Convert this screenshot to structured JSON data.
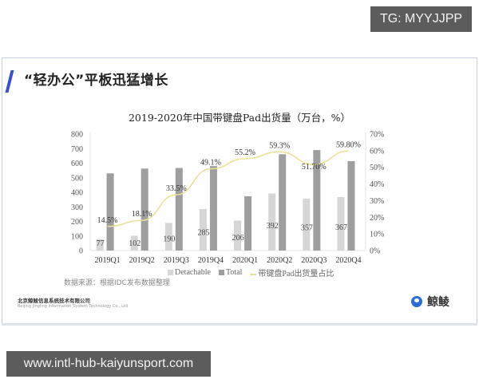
{
  "overlay": {
    "tg_badge": "TG: MYYJJPP",
    "url_badge": "www.intl-hub-kaiyunsport.com"
  },
  "slide": {
    "title": "“轻办公”平板迅猛增长",
    "source_note": "数据来源：根据IDC发布数据整理",
    "company_cn": "北京鲸鲮信息系统技术有限公司",
    "company_en": "Beijing Jingling Information System Technology Co., Ltd",
    "brand_name": "鲸鲮",
    "accent_color": "#3a4fd0"
  },
  "chart_data": {
    "type": "bar",
    "title": "2019-2020年中国带键盘Pad出货量（万台，%）",
    "categories": [
      "2019Q1",
      "2019Q2",
      "2019Q3",
      "2019Q4",
      "2020Q1",
      "2020Q2",
      "2020Q3",
      "2020Q4"
    ],
    "series": [
      {
        "name": "Detachable",
        "type": "bar",
        "axis": "left",
        "color": "#d6d6d6",
        "values": [
          77,
          102,
          190,
          285,
          206,
          392,
          357,
          367
        ],
        "labels": [
          "77",
          "102",
          "190",
          "285",
          "206",
          "392",
          "357",
          "367"
        ]
      },
      {
        "name": "Total",
        "type": "bar",
        "axis": "left",
        "color": "#9e9e9e",
        "values": [
          530,
          563,
          567,
          580,
          373,
          661,
          690,
          614
        ]
      },
      {
        "name": "带键盘Pad出货量占比",
        "type": "line",
        "axis": "right",
        "color": "#e8e39a",
        "values": [
          14.5,
          18.1,
          33.5,
          49.1,
          55.2,
          59.3,
          51.7,
          59.8
        ],
        "labels": [
          "14.5%",
          "18.1%",
          "33.5%",
          "49.1%",
          "55.2%",
          "59.3%",
          "51.70%",
          "59.80%"
        ]
      }
    ],
    "y_left": {
      "ticks": [
        "0",
        "100",
        "200",
        "300",
        "400",
        "500",
        "600",
        "700",
        "800"
      ],
      "range": [
        0,
        800
      ]
    },
    "y_right": {
      "ticks": [
        "0%",
        "10%",
        "20%",
        "30%",
        "40%",
        "50%",
        "60%",
        "70%"
      ],
      "range": [
        0,
        70
      ]
    },
    "legend": [
      "Detachable",
      "Total",
      "带键盘Pad出货量占比"
    ],
    "legend_position": "bottom",
    "grid": false,
    "xlabel": "",
    "ylabel": ""
  }
}
